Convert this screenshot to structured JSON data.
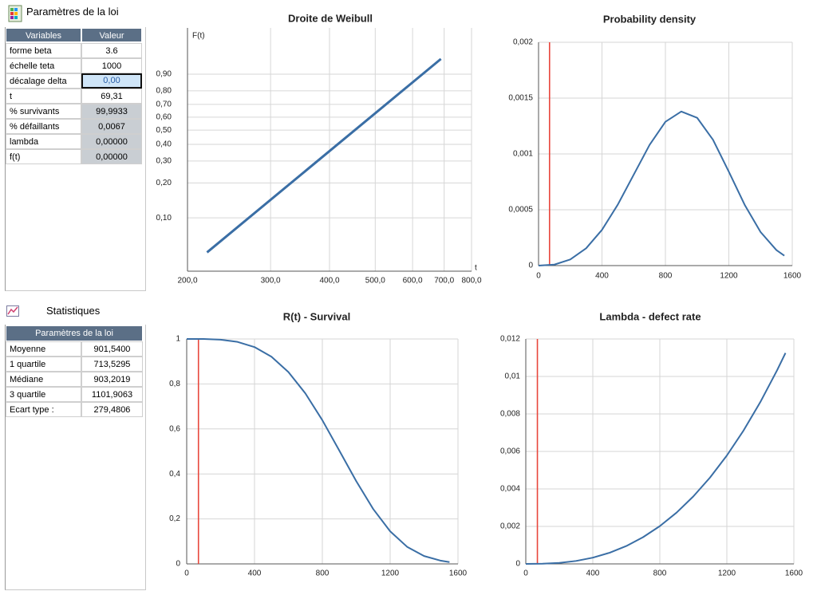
{
  "params_panel": {
    "title": "Paramètres de la loi",
    "columns": [
      "Variables",
      "Valeur"
    ],
    "rows": [
      [
        "forme beta",
        "3.6"
      ],
      [
        "échelle teta",
        "1000"
      ],
      [
        "décalage delta",
        "0,00"
      ],
      [
        "t",
        "69,31"
      ],
      [
        "% survivants",
        "99,9933"
      ],
      [
        "% défaillants",
        "0,0067"
      ],
      [
        "lambda",
        "0,00000"
      ],
      [
        "f(t)",
        "0,00000"
      ]
    ]
  },
  "stats_panel": {
    "title": "Statistiques",
    "table_title": "Paramètres de la loi",
    "rows": [
      [
        "Moyenne",
        "901,5400"
      ],
      [
        "1 quartile",
        "713,5295"
      ],
      [
        "Médiane",
        "903,2019"
      ],
      [
        "3 quartile",
        "1101,9063"
      ],
      [
        "Ecart type :",
        "279,4806"
      ]
    ]
  },
  "chart_data": [
    {
      "type": "line",
      "title": "Droite de Weibull",
      "x_label": "t",
      "y_label": "F(t)",
      "x_scale": "log",
      "y_scale": "weibull",
      "x": [
        220,
        689
      ],
      "values": [
        0.049,
        0.959
      ],
      "color": "#3a6ea5",
      "xlim": [
        200,
        800
      ],
      "xticks": [
        {
          "value": 200,
          "label": "200,0"
        },
        {
          "value": 300,
          "label": "300,0"
        },
        {
          "value": 400,
          "label": "400,0"
        },
        {
          "value": 500,
          "label": "500,0"
        },
        {
          "value": 600,
          "label": "600,0"
        },
        {
          "value": 700,
          "label": "700,0"
        },
        {
          "value": 800,
          "label": "800,0"
        }
      ],
      "ylim": [
        0.033,
        0.998
      ],
      "yticks": [
        {
          "value": 0.1,
          "label": "0,10"
        },
        {
          "value": 0.2,
          "label": "0,20"
        },
        {
          "value": 0.3,
          "label": "0,30"
        },
        {
          "value": 0.4,
          "label": "0,40"
        },
        {
          "value": 0.5,
          "label": "0,50"
        },
        {
          "value": 0.6,
          "label": "0,60"
        },
        {
          "value": 0.7,
          "label": "0,70"
        },
        {
          "value": 0.8,
          "label": "0,80"
        },
        {
          "value": 0.9,
          "label": "0,90"
        }
      ],
      "grid": true
    },
    {
      "type": "line",
      "title": "Probability density",
      "x": [
        0,
        100,
        200,
        300,
        400,
        500,
        600,
        700,
        800,
        900,
        1000,
        1100,
        1200,
        1300,
        1400,
        1500,
        1550
      ],
      "values": [
        0,
        9e-06,
        5.47e-05,
        0.000155,
        0.00032,
        0.000547,
        0.000814,
        0.001081,
        0.001288,
        0.00138,
        0.001324,
        0.001127,
        0.000841,
        0.000544,
        0.000301,
        0.000139,
        8.86e-05
      ],
      "color": "#3a6ea5",
      "cursor_x": 69.31,
      "cursor_color": "#e8463c",
      "xlim": [
        0,
        1600
      ],
      "xticks": [
        0,
        400,
        800,
        1200,
        1600
      ],
      "ylim": [
        0,
        0.002
      ],
      "yticks": [
        0,
        {
          "value": 0.0005,
          "label": "0,0005"
        },
        {
          "value": 0.001,
          "label": "0,001"
        },
        {
          "value": 0.0015,
          "label": "0,0015"
        },
        {
          "value": 0.002,
          "label": "0,002"
        }
      ],
      "grid": true
    },
    {
      "type": "line",
      "title": "R(t) - Survival",
      "x": [
        0,
        100,
        200,
        300,
        400,
        500,
        600,
        700,
        800,
        900,
        1000,
        1100,
        1200,
        1300,
        1400,
        1500,
        1550
      ],
      "values": [
        1,
        1,
        0.997,
        0.987,
        0.964,
        0.921,
        0.853,
        0.758,
        0.639,
        0.504,
        0.368,
        0.244,
        0.145,
        0.076,
        0.035,
        0.014,
        0.008
      ],
      "color": "#3a6ea5",
      "cursor_x": 69.31,
      "cursor_color": "#e8463c",
      "xlim": [
        0,
        1600
      ],
      "xticks": [
        0,
        400,
        800,
        1200,
        1600
      ],
      "ylim": [
        0,
        1
      ],
      "yticks": [
        0,
        {
          "value": 0.2,
          "label": "0,2"
        },
        {
          "value": 0.4,
          "label": "0,4"
        },
        {
          "value": 0.6,
          "label": "0,6"
        },
        {
          "value": 0.8,
          "label": "0,8"
        },
        1
      ],
      "grid": true
    },
    {
      "type": "line",
      "title": "Lambda - defect rate",
      "x": [
        0,
        100,
        200,
        300,
        400,
        500,
        600,
        700,
        800,
        900,
        1000,
        1100,
        1200,
        1300,
        1400,
        1500,
        1550
      ],
      "values": [
        0,
        9e-06,
        5.5e-05,
        0.000157,
        0.000332,
        0.000594,
        0.000954,
        0.001426,
        0.002016,
        0.002736,
        0.0036,
        0.004612,
        0.005782,
        0.007121,
        0.008636,
        0.010332,
        0.011254
      ],
      "color": "#3a6ea5",
      "cursor_x": 69.31,
      "cursor_color": "#e8463c",
      "xlim": [
        0,
        1600
      ],
      "xticks": [
        0,
        400,
        800,
        1200,
        1600
      ],
      "ylim": [
        0,
        0.012
      ],
      "yticks": [
        0,
        {
          "value": 0.002,
          "label": "0,002"
        },
        {
          "value": 0.004,
          "label": "0,004"
        },
        {
          "value": 0.006,
          "label": "0,006"
        },
        {
          "value": 0.008,
          "label": "0,008"
        },
        {
          "value": 0.01,
          "label": "0,01"
        },
        {
          "value": 0.012,
          "label": "0,012"
        }
      ],
      "grid": true
    }
  ]
}
